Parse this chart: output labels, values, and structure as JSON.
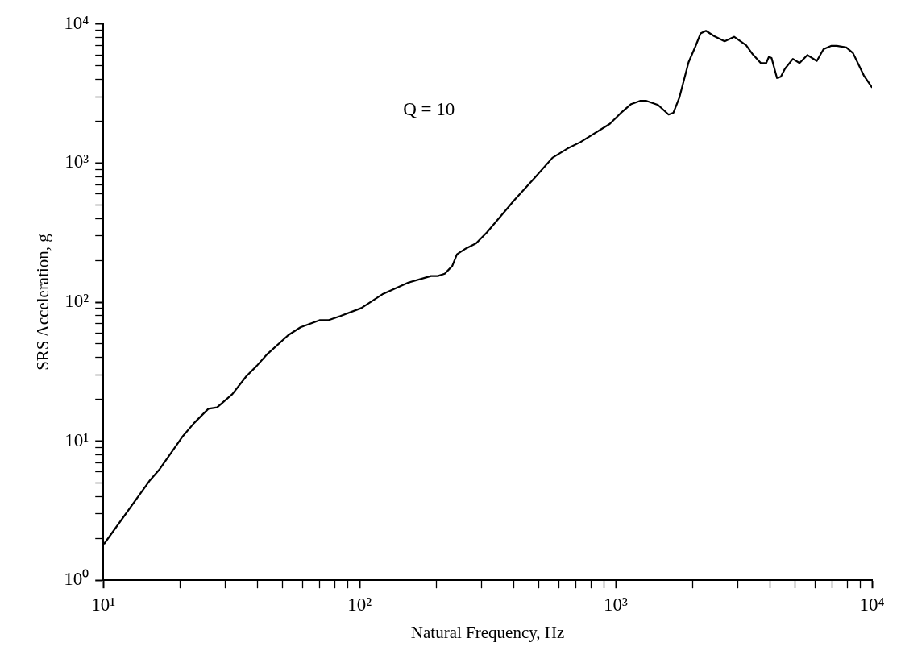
{
  "chart_data": {
    "type": "line",
    "xlabel": "Natural Frequency, Hz",
    "ylabel": "SRS Acceleration, g",
    "annotations": [
      "Q = 10"
    ],
    "log": "xy",
    "grid": false,
    "legend": false,
    "marker": "none",
    "line_style": "solid",
    "xlim": [
      10,
      10000
    ],
    "ylim": [
      1,
      10000
    ],
    "xticks": [
      {
        "value": 10,
        "label": "10¹"
      },
      {
        "value": 20,
        "label": null
      },
      {
        "value": 30,
        "label": null
      },
      {
        "value": 40,
        "label": null
      },
      {
        "value": 50,
        "label": null
      },
      {
        "value": 60,
        "label": null
      },
      {
        "value": 70,
        "label": null
      },
      {
        "value": 80,
        "label": null
      },
      {
        "value": 90,
        "label": null
      },
      {
        "value": 100,
        "label": "10²"
      },
      {
        "value": 200,
        "label": null
      },
      {
        "value": 300,
        "label": null
      },
      {
        "value": 400,
        "label": null
      },
      {
        "value": 500,
        "label": null
      },
      {
        "value": 600,
        "label": null
      },
      {
        "value": 700,
        "label": null
      },
      {
        "value": 800,
        "label": null
      },
      {
        "value": 900,
        "label": null
      },
      {
        "value": 1000,
        "label": "10³"
      },
      {
        "value": 2000,
        "label": null
      },
      {
        "value": 3000,
        "label": null
      },
      {
        "value": 4000,
        "label": null
      },
      {
        "value": 5000,
        "label": null
      },
      {
        "value": 6000,
        "label": null
      },
      {
        "value": 7000,
        "label": null
      },
      {
        "value": 8000,
        "label": null
      },
      {
        "value": 9000,
        "label": null
      },
      {
        "value": 10000,
        "label": "10⁴"
      }
    ],
    "yticks": [
      {
        "value": 1,
        "label": "10⁰"
      },
      {
        "value": 2,
        "label": null
      },
      {
        "value": 3,
        "label": null
      },
      {
        "value": 4,
        "label": null
      },
      {
        "value": 5,
        "label": null
      },
      {
        "value": 6,
        "label": null
      },
      {
        "value": 7,
        "label": null
      },
      {
        "value": 8,
        "label": null
      },
      {
        "value": 9,
        "label": null
      },
      {
        "value": 10,
        "label": "10¹"
      },
      {
        "value": 20,
        "label": null
      },
      {
        "value": 30,
        "label": null
      },
      {
        "value": 40,
        "label": null
      },
      {
        "value": 50,
        "label": null
      },
      {
        "value": 60,
        "label": null
      },
      {
        "value": 70,
        "label": null
      },
      {
        "value": 80,
        "label": null
      },
      {
        "value": 90,
        "label": null
      },
      {
        "value": 100,
        "label": "10²"
      },
      {
        "value": 200,
        "label": null
      },
      {
        "value": 300,
        "label": null
      },
      {
        "value": 400,
        "label": null
      },
      {
        "value": 500,
        "label": null
      },
      {
        "value": 600,
        "label": null
      },
      {
        "value": 700,
        "label": null
      },
      {
        "value": 800,
        "label": null
      },
      {
        "value": 900,
        "label": null
      },
      {
        "value": 1000,
        "label": "10³"
      },
      {
        "value": 2000,
        "label": null
      },
      {
        "value": 3000,
        "label": null
      },
      {
        "value": 4000,
        "label": null
      },
      {
        "value": 5000,
        "label": null
      },
      {
        "value": 6000,
        "label": null
      },
      {
        "value": 7000,
        "label": null
      },
      {
        "value": 8000,
        "label": null
      },
      {
        "value": 9000,
        "label": null
      },
      {
        "value": 10000,
        "label": "10⁴"
      }
    ],
    "series": [
      {
        "color": "#000000",
        "x": [
          10.1,
          15.1,
          16.6,
          20.3,
          22.6,
          25.7,
          27.8,
          31.9,
          36.2,
          39.7,
          43.7,
          52.7,
          58.8,
          69.8,
          75.5,
          84.2,
          101.6,
          122.7,
          155,
          190,
          202,
          215,
          230,
          240,
          260,
          285,
          314,
          399,
          484,
          566,
          646,
          728,
          948,
          1043,
          1148,
          1249,
          1312,
          1462,
          1608,
          1679,
          1771,
          1924,
          2045,
          2143,
          2249,
          2418,
          2660,
          2897,
          3227,
          3427,
          3681,
          3866,
          3958,
          4056,
          4257,
          4409,
          4571,
          4912,
          5215,
          5600,
          6090,
          6470,
          6950,
          7290,
          7940,
          8430,
          9290,
          9980
        ],
        "values": [
          1.84,
          5.15,
          6.3,
          10.7,
          13.5,
          17.1,
          17.5,
          21.8,
          29.4,
          34.8,
          42.4,
          57.9,
          65.9,
          74.1,
          74.1,
          79.4,
          90.6,
          113.8,
          138,
          154,
          154,
          160,
          182,
          221,
          243,
          265,
          317,
          533,
          788,
          1091,
          1268,
          1415,
          1914,
          2278,
          2656,
          2808,
          2808,
          2620,
          2232,
          2300,
          2956,
          5310,
          6890,
          8550,
          8930,
          8190,
          7510,
          8090,
          7030,
          6040,
          5240,
          5240,
          5800,
          5700,
          4090,
          4180,
          4760,
          5610,
          5240,
          5980,
          5420,
          6590,
          6970,
          6970,
          6790,
          6180,
          4270,
          3520
        ]
      }
    ]
  }
}
